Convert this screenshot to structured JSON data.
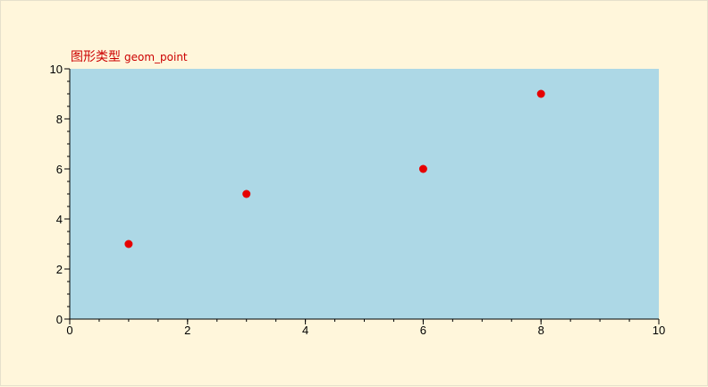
{
  "chart_data": {
    "type": "scatter",
    "title": "图形类型",
    "subtitle": "geom_point",
    "xlabel": "",
    "ylabel": "",
    "xlim": [
      0,
      10
    ],
    "ylim": [
      0,
      10
    ],
    "x_ticks": [
      0,
      2,
      4,
      6,
      8,
      10
    ],
    "y_ticks": [
      0,
      2,
      4,
      6,
      8,
      10
    ],
    "x_minor_step": 0.5,
    "y_minor_step": 0.5,
    "grid": false,
    "legend": "none",
    "series": [
      {
        "points": [
          {
            "x": 1,
            "y": 3
          },
          {
            "x": 3,
            "y": 5
          },
          {
            "x": 6,
            "y": 6
          },
          {
            "x": 8,
            "y": 9
          }
        ]
      }
    ]
  },
  "colors": {
    "page_background": "#fff6db",
    "plot_background": "#add8e6",
    "point": "#e60000",
    "title": "#cc0000",
    "axis": "#000000"
  }
}
